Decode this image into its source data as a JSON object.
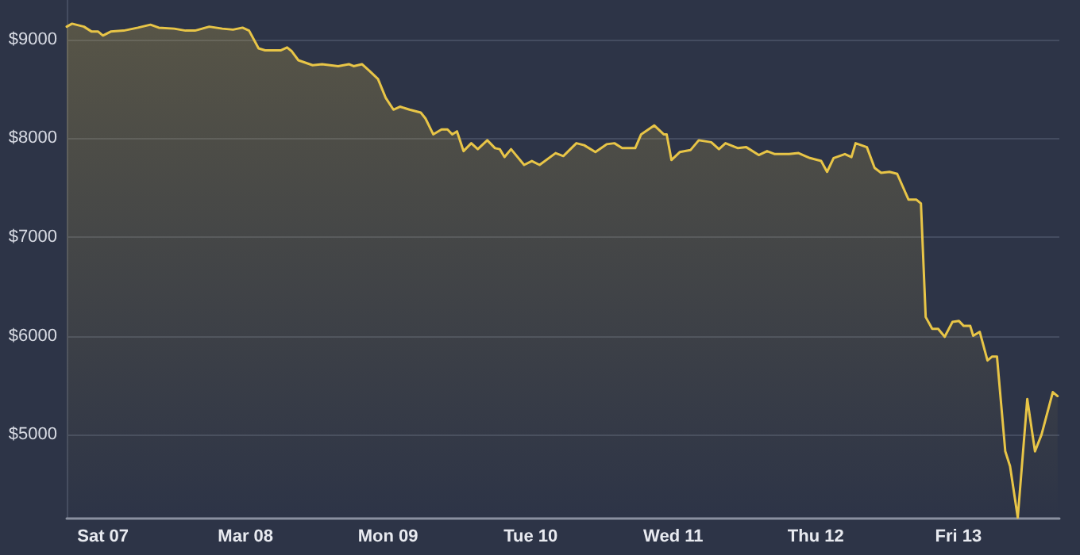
{
  "chart_data": {
    "type": "area",
    "color": "#e8c547",
    "grid": "y",
    "marker": "none",
    "x": [
      "--03-06T17:54",
      "--03-06T18:48",
      "--03-06T20:48",
      "--03-06T22:06",
      "--03-06T23:12",
      "--03-07T00:00",
      "--03-07T01:18",
      "--03-07T03:30",
      "--03-07T05:54",
      "--03-07T08:00",
      "--03-07T09:24",
      "--03-07T12:00",
      "--03-07T13:54",
      "--03-07T15:30",
      "--03-07T17:54",
      "--03-07T20:06",
      "--03-07T21:54",
      "--03-07T23:30",
      "--03-08T00:36",
      "--03-08T02:12",
      "--03-08T03:18",
      "--03-08T05:54",
      "--03-08T07:00",
      "--03-08T07:48",
      "--03-08T08:54",
      "--03-08T11:18",
      "--03-08T12:54",
      "--03-08T15:36",
      "--03-08T17:24",
      "--03-08T18:12",
      "--03-08T19:36",
      "--03-08T20:54",
      "--03-08T22:18",
      "--03-08T23:36",
      "--03-09T00:54",
      "--03-09T02:00",
      "--03-09T03:36",
      "--03-09T05:30",
      "--03-09T06:18",
      "--03-09T07:36",
      "--03-09T09:00",
      "--03-09T10:00",
      "--03-09T10:48",
      "--03-09T11:36",
      "--03-09T12:42",
      "--03-09T14:00",
      "--03-09T15:06",
      "--03-09T16:42",
      "--03-09T18:00",
      "--03-09T18:48",
      "--03-09T19:36",
      "--03-09T20:42",
      "--03-09T22:54",
      "--03-10T00:12",
      "--03-10T01:30",
      "--03-10T04:12",
      "--03-10T05:30",
      "--03-10T07:42",
      "--03-10T09:00",
      "--03-10T10:54",
      "--03-10T12:48",
      "--03-10T14:06",
      "--03-10T15:24",
      "--03-10T17:36",
      "--03-10T18:36",
      "--03-10T20:48",
      "--03-10T22:24",
      "--03-10T22:54",
      "--03-10T23:42",
      "--03-11T01:06",
      "--03-11T02:54",
      "--03-11T04:18",
      "--03-11T06:24",
      "--03-11T07:42",
      "--03-11T08:48",
      "--03-11T10:54",
      "--03-11T12:18",
      "--03-11T14:24",
      "--03-11T15:48",
      "--03-11T17:06",
      "--03-11T19:30",
      "--03-11T21:06",
      "--03-11T23:00",
      "--03-12T00:54",
      "--03-12T01:54",
      "--03-12T03:00",
      "--03-12T04:54",
      "--03-12T06:00",
      "--03-12T06:42",
      "--03-12T08:36",
      "--03-12T09:54",
      "--03-12T11:00",
      "--03-12T12:24",
      "--03-12T13:42",
      "--03-12T15:36",
      "--03-12T16:54",
      "--03-12T17:42",
      "--03-12T18:30",
      "--03-12T19:36",
      "--03-12T20:36",
      "--03-12T21:42",
      "--03-12T23:00",
      "--03-13T00:06",
      "--03-13T00:54",
      "--03-13T02:00",
      "--03-13T02:30",
      "--03-13T03:36",
      "--03-13T04:54",
      "--03-13T05:42",
      "--03-13T06:30",
      "--03-13T07:54",
      "--03-13T08:42",
      "--03-13T10:00",
      "--03-13T11:36",
      "--03-13T12:54",
      "--03-13T14:00",
      "--03-13T15:54",
      "--03-13T16:42"
    ],
    "values": [
      9130,
      9160,
      9130,
      9080,
      9080,
      9040,
      9080,
      9090,
      9120,
      9150,
      9120,
      9110,
      9090,
      9090,
      9130,
      9110,
      9100,
      9120,
      9090,
      8910,
      8890,
      8890,
      8920,
      8880,
      8790,
      8740,
      8750,
      8730,
      8750,
      8730,
      8750,
      8680,
      8600,
      8410,
      8290,
      8320,
      8290,
      8260,
      8200,
      8040,
      8090,
      8090,
      8040,
      8070,
      7870,
      7950,
      7890,
      7980,
      7900,
      7890,
      7810,
      7890,
      7730,
      7770,
      7730,
      7850,
      7820,
      7950,
      7930,
      7860,
      7940,
      7950,
      7900,
      7900,
      8040,
      8130,
      8040,
      8040,
      7780,
      7860,
      7880,
      7980,
      7960,
      7890,
      7950,
      7900,
      7910,
      7830,
      7870,
      7840,
      7840,
      7850,
      7800,
      7770,
      7660,
      7800,
      7840,
      7810,
      7950,
      7910,
      7700,
      7650,
      7660,
      7640,
      7380,
      7380,
      7340,
      6190,
      6070,
      6070,
      5990,
      6140,
      6150,
      6100,
      6100,
      6000,
      6040,
      5750,
      5790,
      5790,
      4830,
      4680,
      4160,
      5360,
      4830,
      5000,
      5430,
      5390
    ],
    "xlim": [
      "--03-06T17:54",
      "--03-13T17:00"
    ],
    "ylim": [
      4150,
      9400
    ],
    "xticks": [
      {
        "value": "--03-07",
        "label": "Sat 07"
      },
      {
        "value": "--03-08",
        "label": "Mar 08"
      },
      {
        "value": "--03-09",
        "label": "Mon 09"
      },
      {
        "value": "--03-10",
        "label": "Tue 10"
      },
      {
        "value": "--03-11",
        "label": "Wed 11"
      },
      {
        "value": "--03-12",
        "label": "Thu 12"
      },
      {
        "value": "--03-13",
        "label": "Fri 13"
      }
    ],
    "yticks": [
      {
        "value": 5000,
        "label": "$5000"
      },
      {
        "value": 6000,
        "label": "$6000"
      },
      {
        "value": 7000,
        "label": "$7000"
      },
      {
        "value": 8000,
        "label": "$8000"
      },
      {
        "value": 9000,
        "label": "$9000"
      }
    ]
  }
}
